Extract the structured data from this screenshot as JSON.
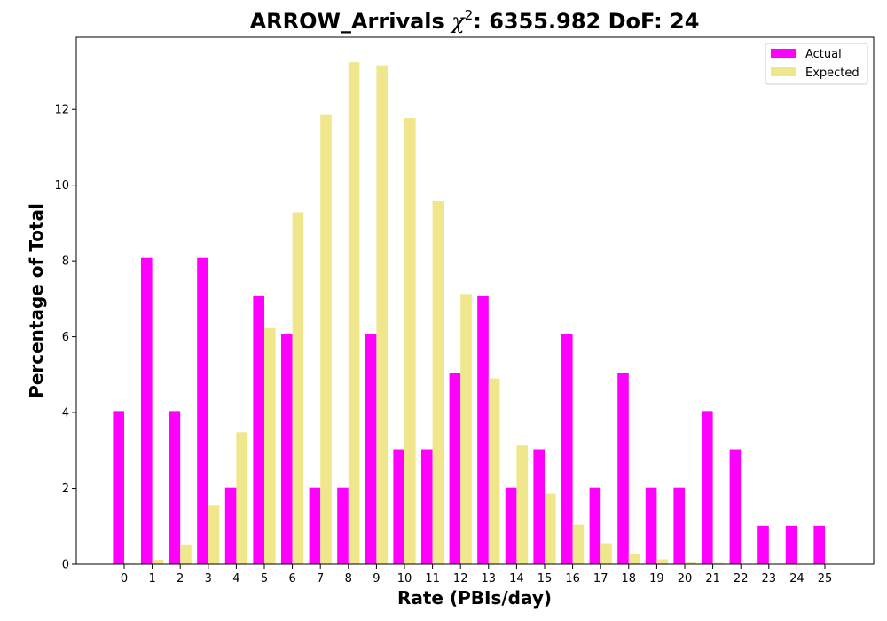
{
  "chart_data": {
    "type": "bar",
    "title_prefix": "ARROW_Arrivals ",
    "title_chi": "χ",
    "title_sup": "2",
    "title_suffix": ": 6355.982 DoF: 24",
    "xlabel": "Rate (PBIs/day)",
    "ylabel": "Percentage of Total",
    "categories": [
      "0",
      "1",
      "2",
      "3",
      "4",
      "5",
      "6",
      "7",
      "8",
      "9",
      "10",
      "11",
      "12",
      "13",
      "14",
      "15",
      "16",
      "17",
      "18",
      "19",
      "20",
      "21",
      "22",
      "23",
      "24",
      "25"
    ],
    "ylim": [
      0,
      13.9
    ],
    "yticks": [
      0,
      2,
      4,
      6,
      8,
      10,
      12
    ],
    "legend_position": "top-right",
    "grid": false,
    "series": [
      {
        "name": "Actual",
        "color": "#ff00ff",
        "values": [
          4.04,
          8.08,
          4.04,
          8.08,
          2.02,
          7.07,
          6.06,
          2.02,
          2.02,
          6.06,
          3.03,
          3.03,
          5.05,
          7.07,
          2.02,
          3.03,
          6.06,
          2.02,
          5.05,
          2.02,
          2.02,
          4.04,
          3.03,
          1.01,
          1.01,
          1.01
        ]
      },
      {
        "name": "Expected",
        "color": "#f0e68c",
        "values": [
          0.02,
          0.12,
          0.52,
          1.56,
          3.48,
          6.23,
          9.28,
          11.85,
          13.24,
          13.16,
          11.77,
          9.57,
          7.13,
          4.9,
          3.13,
          1.86,
          1.04,
          0.55,
          0.27,
          0.13,
          0.06,
          0.03,
          0.01,
          0.0,
          0.0,
          0.0
        ]
      }
    ]
  }
}
